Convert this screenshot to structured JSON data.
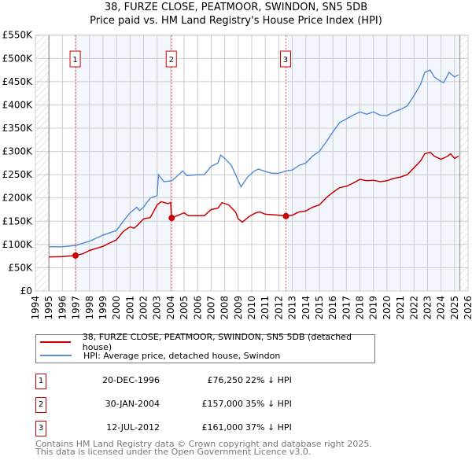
{
  "chart_data": {
    "type": "line",
    "title": "38, FURZE CLOSE, PEATMOOR, SWINDON, SN5 5DB",
    "subtitle": "Price paid vs. HM Land Registry's House Price Index (HPI)",
    "xlim": [
      1994,
      2026
    ],
    "ylim": [
      0,
      550000
    ],
    "x_ticks": [
      "1994",
      "1995",
      "1996",
      "1997",
      "1998",
      "1999",
      "2000",
      "2001",
      "2002",
      "2003",
      "2004",
      "2005",
      "2006",
      "2007",
      "2008",
      "2009",
      "2010",
      "2011",
      "2012",
      "2013",
      "2014",
      "2015",
      "2016",
      "2017",
      "2018",
      "2019",
      "2020",
      "2021",
      "2022",
      "2023",
      "2024",
      "2025",
      "2026"
    ],
    "y_ticks": [
      {
        "v": 0,
        "label": "£0"
      },
      {
        "v": 50000,
        "label": "£50K"
      },
      {
        "v": 100000,
        "label": "£100K"
      },
      {
        "v": 150000,
        "label": "£150K"
      },
      {
        "v": 200000,
        "label": "£200K"
      },
      {
        "v": 250000,
        "label": "£250K"
      },
      {
        "v": 300000,
        "label": "£300K"
      },
      {
        "v": 350000,
        "label": "£350K"
      },
      {
        "v": 400000,
        "label": "£400K"
      },
      {
        "v": 450000,
        "label": "£450K"
      },
      {
        "v": 500000,
        "label": "£500K"
      },
      {
        "v": 550000,
        "label": "£550K"
      }
    ],
    "grid": true,
    "data_range": [
      1995,
      2025.4
    ],
    "series": [
      {
        "name": "38, FURZE CLOSE, PEATMOOR, SWINDON, SN5 5DB (detached house)",
        "color": "#cc0000",
        "x": [
          1995,
          1996,
          1996.97,
          1997.5,
          1998,
          1999,
          2000,
          2000.5,
          2001,
          2001.3,
          2001.5,
          2002,
          2002.5,
          2003,
          2003.3,
          2003.8,
          2004.0,
          2004.08,
          2005,
          2005.3,
          2006,
          2006.5,
          2007,
          2007.5,
          2007.8,
          2008.3,
          2008.8,
          2009,
          2009.3,
          2009.8,
          2010.3,
          2010.6,
          2011,
          2012,
          2012.53,
          2013,
          2013.5,
          2014,
          2014.5,
          2015,
          2015.5,
          2016,
          2016.5,
          2017,
          2017.5,
          2018,
          2018.5,
          2019,
          2019.5,
          2020,
          2020.5,
          2021,
          2021.5,
          2022,
          2022.5,
          2022.8,
          2023.2,
          2023.5,
          2024,
          2024.5,
          2024.7,
          2025,
          2025.3
        ],
        "y": [
          73000,
          74000,
          76250,
          80000,
          87000,
          96000,
          110000,
          128000,
          138000,
          135000,
          140000,
          155000,
          158000,
          185000,
          192000,
          188000,
          190000,
          157000,
          168000,
          162000,
          162000,
          162000,
          175000,
          178000,
          190000,
          185000,
          170000,
          155000,
          148000,
          160000,
          168000,
          170000,
          165000,
          163000,
          161000,
          163000,
          170000,
          172000,
          180000,
          185000,
          200000,
          212000,
          222000,
          225000,
          232000,
          240000,
          237000,
          238000,
          235000,
          237000,
          242000,
          245000,
          250000,
          265000,
          280000,
          295000,
          298000,
          290000,
          283000,
          290000,
          295000,
          285000,
          290000
        ]
      },
      {
        "name": "HPI: Average price, detached house, Swindon",
        "color": "#5b8fd4",
        "x": [
          1995,
          1996,
          1997,
          1998,
          1999,
          2000,
          2000.5,
          2001,
          2001.5,
          2001.7,
          2002,
          2002.5,
          2003,
          2003.5,
          2003.1,
          2004.1,
          2004.9,
          2005.2,
          2006,
          2006.5,
          2007,
          2007.5,
          2007.7,
          2008,
          2008.5,
          2009.2,
          2009.7,
          2010.2,
          2010.5,
          2011,
          2011.5,
          2012,
          2012.5,
          2013,
          2013.5,
          2014,
          2014.5,
          2015,
          2015.5,
          2016,
          2016.5,
          2017,
          2017.5,
          2018,
          2018.5,
          2019,
          2019.5,
          2020,
          2020.5,
          2021,
          2021.5,
          2022,
          2022.5,
          2022.8,
          2023.2,
          2023.5,
          2024,
          2024.2,
          2024.6,
          2025,
          2025.3
        ],
        "y": [
          95000,
          95000,
          98000,
          107000,
          120000,
          130000,
          150000,
          168000,
          180000,
          173000,
          180000,
          200000,
          205000,
          235000,
          250000,
          237000,
          258000,
          248000,
          250000,
          250000,
          268000,
          275000,
          292000,
          285000,
          270000,
          224000,
          245000,
          258000,
          262000,
          257000,
          253000,
          253000,
          258000,
          260000,
          270000,
          275000,
          290000,
          300000,
          320000,
          342000,
          362000,
          370000,
          378000,
          385000,
          380000,
          385000,
          378000,
          377000,
          385000,
          390000,
          398000,
          420000,
          445000,
          470000,
          475000,
          460000,
          450000,
          448000,
          470000,
          460000,
          465000
        ]
      }
    ],
    "sales": [
      {
        "label": "1",
        "x": 1996.97,
        "y": 76250
      },
      {
        "label": "2",
        "x": 2004.08,
        "y": 157000
      },
      {
        "label": "3",
        "x": 2012.53,
        "y": 161000
      }
    ],
    "legend_placement": "below"
  },
  "legend": {
    "red": "38, FURZE CLOSE, PEATMOOR, SWINDON, SN5 5DB (detached house)",
    "blue": "HPI: Average price, detached house, Swindon"
  },
  "table": [
    {
      "num": "1",
      "date": "20-DEC-1996",
      "price": "£76,250",
      "hpi": "22% ↓ HPI"
    },
    {
      "num": "2",
      "date": "30-JAN-2004",
      "price": "£157,000",
      "hpi": "35% ↓ HPI"
    },
    {
      "num": "3",
      "date": "12-JUL-2012",
      "price": "£161,000",
      "hpi": "37% ↓ HPI"
    }
  ],
  "footer": [
    "Contains HM Land Registry data © Crown copyright and database right 2025.",
    "This data is licensed under the Open Government Licence v3.0."
  ]
}
